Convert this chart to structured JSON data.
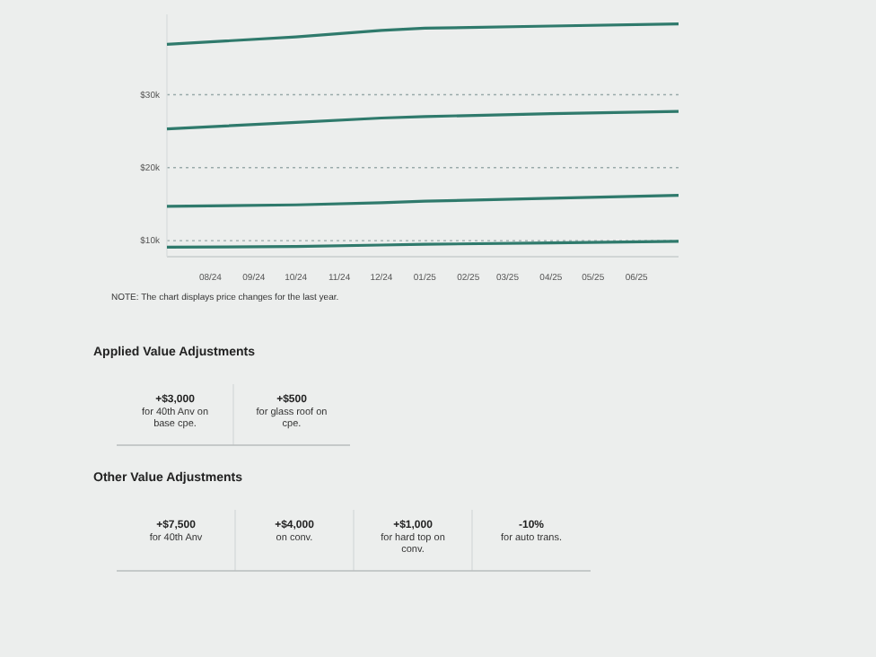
{
  "chart_data": [
    {
      "type": "line",
      "x": [
        "2024-07",
        "2024-10",
        "2024-12",
        "2025-01",
        "2025-04",
        "2025-07"
      ],
      "series": [
        {
          "color": "#2f7a6c",
          "values": [
            36.9,
            37.9,
            38.8,
            39.1,
            39.4,
            39.7
          ]
        },
        {
          "color": "#2f7a6c",
          "values": [
            25.3,
            26.2,
            26.8,
            27.0,
            27.4,
            27.7
          ]
        },
        {
          "color": "#2f7a6c",
          "values": [
            14.7,
            14.9,
            15.2,
            15.4,
            15.8,
            16.2
          ]
        },
        {
          "color": "#2f7a6c",
          "values": [
            9.1,
            9.2,
            9.4,
            9.5,
            9.7,
            9.9
          ]
        }
      ],
      "xlim": [
        "2024-07",
        "2025-07"
      ],
      "xticks": [
        {
          "value": "2024-08",
          "label": "08/24"
        },
        {
          "value": "2024-09",
          "label": "09/24"
        },
        {
          "value": "2024-10",
          "label": "10/24"
        },
        {
          "value": "2024-11",
          "label": "11/24"
        },
        {
          "value": "2024-12",
          "label": "12/24"
        },
        {
          "value": "2025-01",
          "label": "01/25"
        },
        {
          "value": "2025-02",
          "label": "02/25"
        },
        {
          "value": "2025-03",
          "label": "03/25"
        },
        {
          "value": "2025-04",
          "label": "04/25"
        },
        {
          "value": "2025-05",
          "label": "05/25"
        },
        {
          "value": "2025-06",
          "label": "06/25"
        }
      ],
      "ylim": [
        7.8,
        41
      ],
      "yticks": [
        {
          "value": 10,
          "label": "$10k"
        },
        {
          "value": 20,
          "label": "$20k"
        },
        {
          "value": 30,
          "label": "$30k"
        }
      ],
      "grid": "y",
      "marker": "none",
      "annotations": [
        "NOTE: The chart displays price changes for the last year."
      ]
    },
    {
      "type": "other",
      "title": "Applied Value Adjustments",
      "annotations": [
        "+$3,000",
        "for 40th Anv on base cpe.",
        "+$500",
        "for glass roof on cpe."
      ]
    },
    {
      "type": "other",
      "title": "Other Value Adjustments",
      "annotations": [
        "+$7,500",
        "for 40th Anv",
        "+$4,000",
        "on conv.",
        "+$1,000",
        "for hard top on conv.",
        "-10%",
        "for auto trans."
      ]
    }
  ]
}
